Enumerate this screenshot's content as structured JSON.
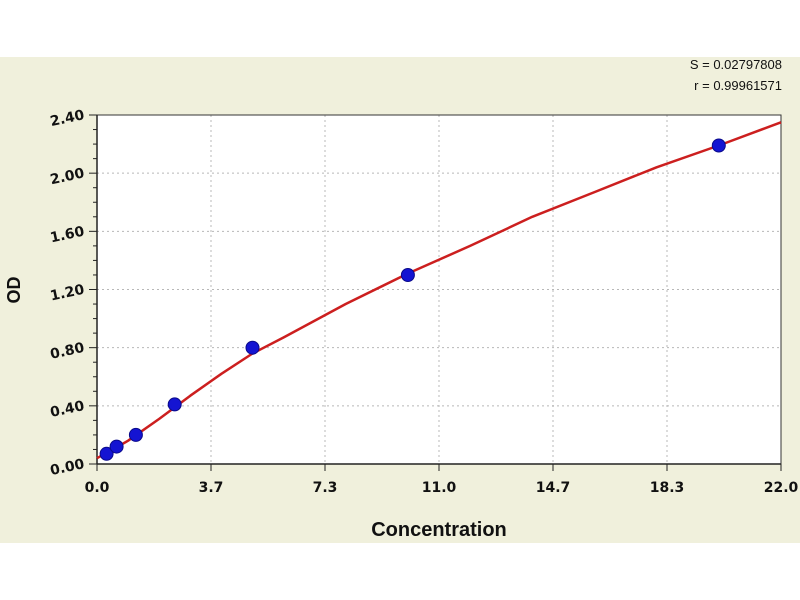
{
  "chart_data": {
    "type": "scatter",
    "title": "",
    "xlabel": "Concentration",
    "ylabel": "OD",
    "xlim": [
      0,
      22
    ],
    "ylim": [
      0,
      2.4
    ],
    "x_ticks": [
      "0.0",
      "3.7",
      "7.3",
      "11.0",
      "14.7",
      "18.3",
      "22.0"
    ],
    "y_ticks": [
      "0.00",
      "0.40",
      "0.80",
      "1.20",
      "1.60",
      "2.00",
      "2.40"
    ],
    "grid": true,
    "stats": {
      "s": "S = 0.02797808",
      "r": "r = 0.99961571"
    },
    "series": [
      {
        "marker_color": "#1414d2",
        "x": [
          0.31,
          0.63,
          1.25,
          2.5,
          5,
          10,
          20
        ],
        "y": [
          0.07,
          0.12,
          0.2,
          0.41,
          0.8,
          1.3,
          2.19
        ]
      },
      {
        "type": "line",
        "line_color": "#cc1f1f",
        "x": [
          0,
          0.25,
          0.5,
          1,
          2,
          3,
          4,
          5,
          6,
          8,
          10,
          12,
          14,
          16,
          18,
          20,
          22
        ],
        "y": [
          0.04,
          0.07,
          0.1,
          0.16,
          0.31,
          0.47,
          0.62,
          0.76,
          0.87,
          1.1,
          1.31,
          1.5,
          1.7,
          1.87,
          2.04,
          2.19,
          2.35
        ]
      }
    ]
  },
  "colors": {
    "band": "#f0f0dc",
    "plot_bg": "#ffffff",
    "grid": "#b8b8b8",
    "fit_line": "#cc1f1f",
    "point": "#1414d2"
  }
}
